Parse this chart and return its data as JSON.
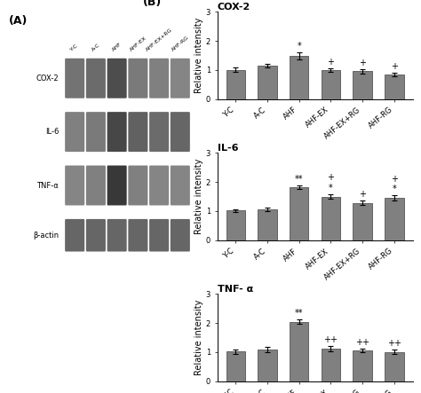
{
  "categories": [
    "Y-C",
    "A-C",
    "AHF",
    "AHF-EX",
    "AHF-EX+RG",
    "AHF-RG"
  ],
  "bar_color": "#808080",
  "bar_edge_color": "#404040",
  "bar_width": 0.6,
  "panels": [
    {
      "title": "COX-2",
      "values": [
        1.0,
        1.15,
        1.47,
        0.98,
        0.95,
        0.85
      ],
      "errors": [
        0.08,
        0.07,
        0.12,
        0.06,
        0.07,
        0.06
      ],
      "annotations": [
        "",
        "",
        "*",
        "+",
        "+",
        "+"
      ],
      "ylim": [
        0,
        3
      ],
      "yticks": [
        0,
        1,
        2,
        3
      ]
    },
    {
      "title": "IL-6",
      "values": [
        1.02,
        1.07,
        1.82,
        1.5,
        1.28,
        1.45
      ],
      "errors": [
        0.05,
        0.06,
        0.06,
        0.08,
        0.07,
        0.09
      ],
      "annotations": [
        "",
        "",
        "**",
        "+\n*",
        "+",
        "+\n*"
      ],
      "ylim": [
        0,
        3
      ],
      "yticks": [
        0,
        1,
        2,
        3
      ]
    },
    {
      "title": "TNF- α",
      "values": [
        1.02,
        1.08,
        2.05,
        1.13,
        1.05,
        1.01
      ],
      "errors": [
        0.08,
        0.09,
        0.08,
        0.09,
        0.06,
        0.07
      ],
      "annotations": [
        "",
        "",
        "**",
        "++",
        "++",
        "++"
      ],
      "ylim": [
        0,
        3
      ],
      "yticks": [
        0,
        1,
        2,
        3
      ]
    }
  ],
  "ylabel": "Relative intensity",
  "panel_label_A": "(A)",
  "panel_label_B": "(B)",
  "background_color": "#ffffff",
  "annot_fontsize": 7,
  "title_fontsize": 8,
  "tick_fontsize": 6,
  "ylabel_fontsize": 7,
  "band_labels": [
    "COX-2",
    "IL-6",
    "TNF-α",
    "β-actin"
  ],
  "lane_labels": [
    "Y-C",
    "A-C",
    "AHF",
    "AHF-EX",
    "AHF-EX+RG",
    "AHF-RG"
  ],
  "band_grays": [
    [
      0.45,
      0.42,
      0.3,
      0.48,
      0.5,
      0.52
    ],
    [
      0.5,
      0.48,
      0.28,
      0.38,
      0.42,
      0.4
    ],
    [
      0.52,
      0.5,
      0.22,
      0.5,
      0.52,
      0.52
    ],
    [
      0.4,
      0.4,
      0.4,
      0.4,
      0.4,
      0.4
    ]
  ]
}
